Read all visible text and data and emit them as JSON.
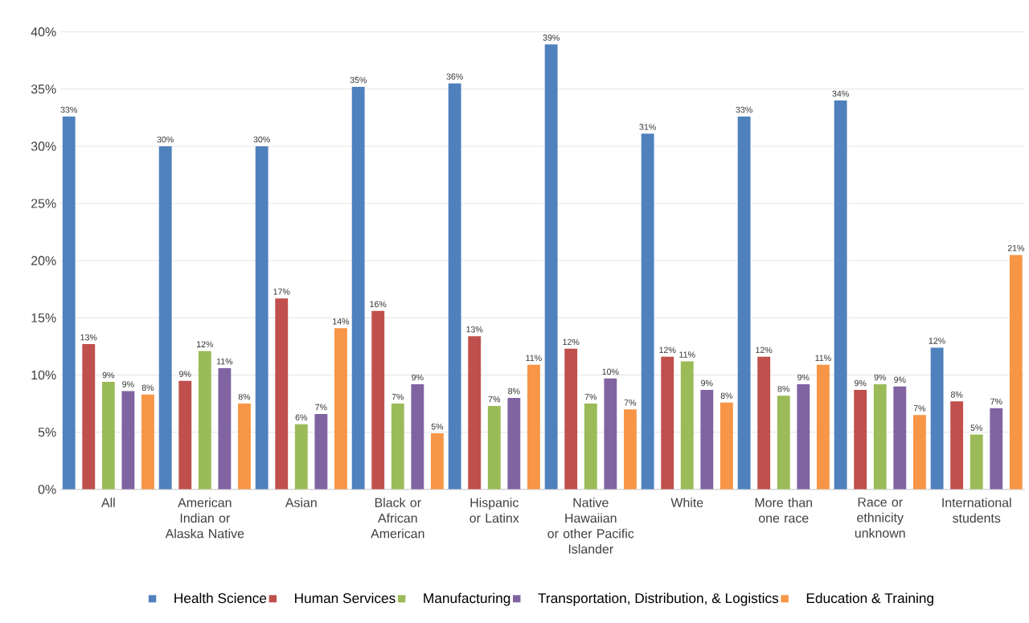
{
  "chart_data": {
    "type": "bar",
    "categories": [
      "All",
      "American Indian or Alaska Native",
      "Asian",
      "Black or African American",
      "Hispanic or Latinx",
      "Native Hawaiian or other Pacific Islander",
      "White",
      "More than one race",
      "Race or ethnicity unknown",
      "International students"
    ],
    "series": [
      {
        "name": "Health Science",
        "color": "#4f81bd",
        "values": [
          32.6,
          30.0,
          30.0,
          35.2,
          35.5,
          38.9,
          31.1,
          32.6,
          34.0,
          12.4
        ],
        "value_labels": [
          "33%",
          "30%",
          "30%",
          "35%",
          "36%",
          "39%",
          "31%",
          "33%",
          "34%",
          "12%"
        ]
      },
      {
        "name": "Human Services",
        "color": "#c0504d",
        "values": [
          12.7,
          9.5,
          16.7,
          15.6,
          13.4,
          12.3,
          11.6,
          11.6,
          8.7,
          7.7
        ],
        "value_labels": [
          "13%",
          "9%",
          "17%",
          "16%",
          "13%",
          "12%",
          "12%",
          "12%",
          "9%",
          "8%"
        ]
      },
      {
        "name": "Manufacturing",
        "color": "#9bbb59",
        "values": [
          9.4,
          12.1,
          5.7,
          7.5,
          7.3,
          7.5,
          11.2,
          8.2,
          9.2,
          4.8
        ],
        "value_labels": [
          "9%",
          "12%",
          "6%",
          "7%",
          "7%",
          "7%",
          "11%",
          "8%",
          "9%",
          "5%"
        ]
      },
      {
        "name": "Transportation, Distribution, & Logistics",
        "color": "#8064a2",
        "values": [
          8.6,
          10.6,
          6.6,
          9.2,
          8.0,
          9.7,
          8.7,
          9.2,
          9.0,
          7.1
        ],
        "value_labels": [
          "9%",
          "11%",
          "7%",
          "9%",
          "8%",
          "10%",
          "9%",
          "9%",
          "9%",
          "7%"
        ]
      },
      {
        "name": "Education & Training",
        "color": "#f79646",
        "values": [
          8.3,
          7.5,
          14.1,
          4.9,
          10.9,
          7.0,
          7.6,
          10.9,
          6.5,
          20.5
        ],
        "value_labels": [
          "8%",
          "8%",
          "14%",
          "5%",
          "11%",
          "7%",
          "8%",
          "11%",
          "7%",
          "21%"
        ]
      }
    ],
    "ylim": [
      0,
      40
    ],
    "yticks": [
      {
        "value": 0,
        "label": "0%"
      },
      {
        "value": 5,
        "label": "5%"
      },
      {
        "value": 10,
        "label": "10%"
      },
      {
        "value": 15,
        "label": "15%"
      },
      {
        "value": 20,
        "label": "20%"
      },
      {
        "value": 25,
        "label": "25%"
      },
      {
        "value": 30,
        "label": "30%"
      },
      {
        "value": 35,
        "label": "35%"
      },
      {
        "value": 40,
        "label": "40%"
      }
    ],
    "grid": "y",
    "legend": "bottom"
  }
}
